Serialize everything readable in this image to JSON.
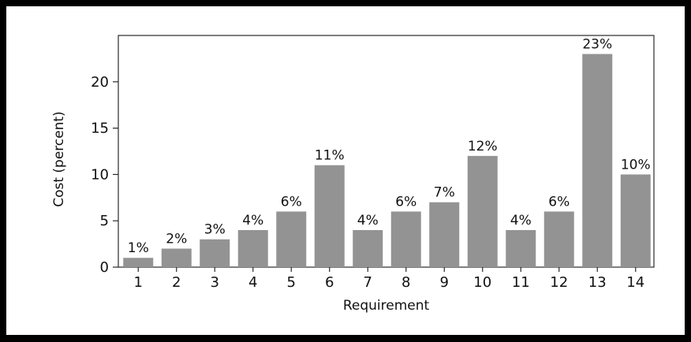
{
  "colors": {
    "bar": "#939393",
    "axis": "#2a2a2a",
    "text": "#111111",
    "frame": "#000000"
  },
  "chart_data": {
    "type": "bar",
    "title": "",
    "xlabel": "Requirement",
    "ylabel": "Cost (percent)",
    "categories": [
      "1",
      "2",
      "3",
      "4",
      "5",
      "6",
      "7",
      "8",
      "9",
      "10",
      "11",
      "12",
      "13",
      "14"
    ],
    "values": [
      1,
      2,
      3,
      4,
      6,
      11,
      4,
      6,
      7,
      12,
      4,
      6,
      23,
      10
    ],
    "data_labels": [
      "1%",
      "2%",
      "3%",
      "4%",
      "6%",
      "11%",
      "4%",
      "6%",
      "7%",
      "12%",
      "4%",
      "6%",
      "23%",
      "10%"
    ],
    "yticks": [
      "0",
      "5",
      "10",
      "15",
      "20"
    ],
    "ylim": [
      0,
      25
    ],
    "grid": false,
    "legend": "none"
  }
}
